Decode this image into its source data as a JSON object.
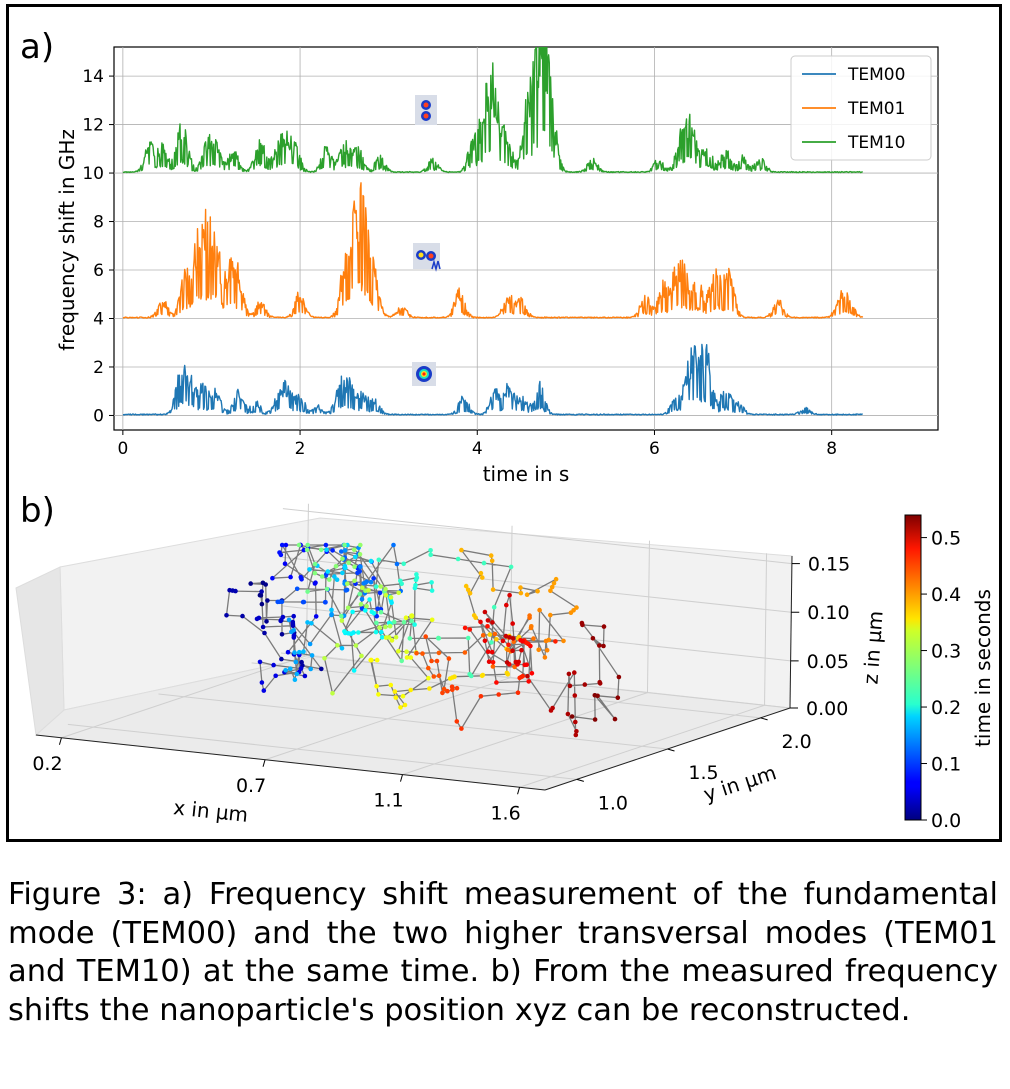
{
  "panel_a": {
    "label": "a)",
    "chart_data": {
      "type": "line",
      "xlabel": "time in s",
      "ylabel": "frequency shift in GHz",
      "xlim": [
        -0.1,
        9.2
      ],
      "ylim": [
        -0.6,
        15.2
      ],
      "xticks": [
        0,
        2,
        4,
        6,
        8
      ],
      "yticks": [
        0,
        2,
        4,
        6,
        8,
        10,
        12,
        14
      ],
      "grid": true,
      "legend_position": "top-right",
      "x_end": 8.35,
      "series": [
        {
          "name": "TEM00",
          "color": "#1f77b4",
          "baseline": 0,
          "peaks": [
            [
              0.65,
              1.9
            ],
            [
              0.75,
              1.5
            ],
            [
              0.9,
              1.3
            ],
            [
              1.05,
              1.1
            ],
            [
              1.3,
              1.1
            ],
            [
              1.5,
              0.6
            ],
            [
              1.75,
              0.8
            ],
            [
              1.85,
              1.2
            ],
            [
              2.0,
              0.8
            ],
            [
              2.2,
              0.4
            ],
            [
              2.45,
              1.2
            ],
            [
              2.55,
              1.4
            ],
            [
              2.7,
              1.0
            ],
            [
              2.85,
              0.7
            ],
            [
              3.85,
              0.9
            ],
            [
              4.2,
              1.1
            ],
            [
              4.35,
              1.3
            ],
            [
              4.5,
              0.8
            ],
            [
              4.7,
              1.5
            ],
            [
              6.25,
              1.0
            ],
            [
              6.4,
              1.8
            ],
            [
              6.5,
              2.2
            ],
            [
              6.6,
              2.0
            ],
            [
              6.8,
              1.2
            ],
            [
              6.95,
              0.5
            ],
            [
              7.7,
              0.3
            ]
          ]
        },
        {
          "name": "TEM01",
          "color": "#ff7f0e",
          "baseline": 4,
          "peaks": [
            [
              0.45,
              0.8
            ],
            [
              0.7,
              1.8
            ],
            [
              0.85,
              2.8
            ],
            [
              0.95,
              2.9
            ],
            [
              1.05,
              2.6
            ],
            [
              1.2,
              1.7
            ],
            [
              1.3,
              2.0
            ],
            [
              1.55,
              0.7
            ],
            [
              2.0,
              1.2
            ],
            [
              2.5,
              1.7
            ],
            [
              2.6,
              3.2
            ],
            [
              2.7,
              3.8
            ],
            [
              2.8,
              2.2
            ],
            [
              3.15,
              0.5
            ],
            [
              3.8,
              1.3
            ],
            [
              4.35,
              1.0
            ],
            [
              4.5,
              0.8
            ],
            [
              5.9,
              1.0
            ],
            [
              6.1,
              1.5
            ],
            [
              6.25,
              2.0
            ],
            [
              6.35,
              1.8
            ],
            [
              6.5,
              1.6
            ],
            [
              6.7,
              2.1
            ],
            [
              6.85,
              1.8
            ],
            [
              7.4,
              0.8
            ],
            [
              8.1,
              1.0
            ],
            [
              8.2,
              0.7
            ]
          ]
        },
        {
          "name": "TEM10",
          "color": "#2ca02c",
          "baseline": 10,
          "peaks": [
            [
              0.3,
              1.3
            ],
            [
              0.45,
              1.2
            ],
            [
              0.65,
              1.4
            ],
            [
              0.7,
              1.0
            ],
            [
              0.95,
              1.3
            ],
            [
              1.05,
              1.1
            ],
            [
              1.25,
              1.0
            ],
            [
              1.55,
              1.6
            ],
            [
              1.75,
              1.2
            ],
            [
              1.85,
              1.3
            ],
            [
              1.95,
              1.0
            ],
            [
              2.3,
              1.2
            ],
            [
              2.5,
              1.3
            ],
            [
              2.65,
              1.1
            ],
            [
              2.9,
              0.7
            ],
            [
              3.5,
              0.6
            ],
            [
              3.95,
              1.4
            ],
            [
              4.1,
              2.6
            ],
            [
              4.2,
              3.2
            ],
            [
              4.35,
              1.2
            ],
            [
              4.55,
              1.8
            ],
            [
              4.6,
              1.4
            ],
            [
              4.7,
              3.0
            ],
            [
              4.75,
              4.2
            ],
            [
              4.85,
              1.6
            ],
            [
              5.3,
              0.6
            ],
            [
              6.05,
              0.6
            ],
            [
              6.3,
              1.6
            ],
            [
              6.4,
              2.2
            ],
            [
              6.6,
              1.2
            ],
            [
              6.8,
              1.0
            ],
            [
              7.0,
              0.7
            ],
            [
              7.2,
              0.6
            ]
          ]
        }
      ]
    }
  },
  "panel_b": {
    "label": "b)",
    "chart_data": {
      "type": "scatter",
      "projection": "3d",
      "xlabel": "x in µm",
      "ylabel": "y in µm",
      "zlabel": "z in µm",
      "xticks": [
        "0.2",
        "0.7",
        "1.1",
        "1.6"
      ],
      "yticks": [
        "1.0",
        "1.5",
        "2.0"
      ],
      "zticks": [
        "0.00",
        "0.05",
        "0.10",
        "0.15"
      ],
      "colorbar_label": "time in seconds",
      "colorbar_ticks": [
        "0.0",
        "0.1",
        "0.2",
        "0.3",
        "0.4",
        "0.5"
      ],
      "colorbar_range": [
        0.0,
        0.54
      ],
      "colormap": "jet",
      "point_count": 420
    }
  },
  "caption": {
    "lead": "Figure 3:",
    "text": " a) Frequency shift measurement of the fundamental mode (TEM00) and the two higher transversal modes (TEM01 and TEM10) at the same time. b) From the measured frequency shifts the nanoparticle's position xyz can be reconstructed."
  }
}
